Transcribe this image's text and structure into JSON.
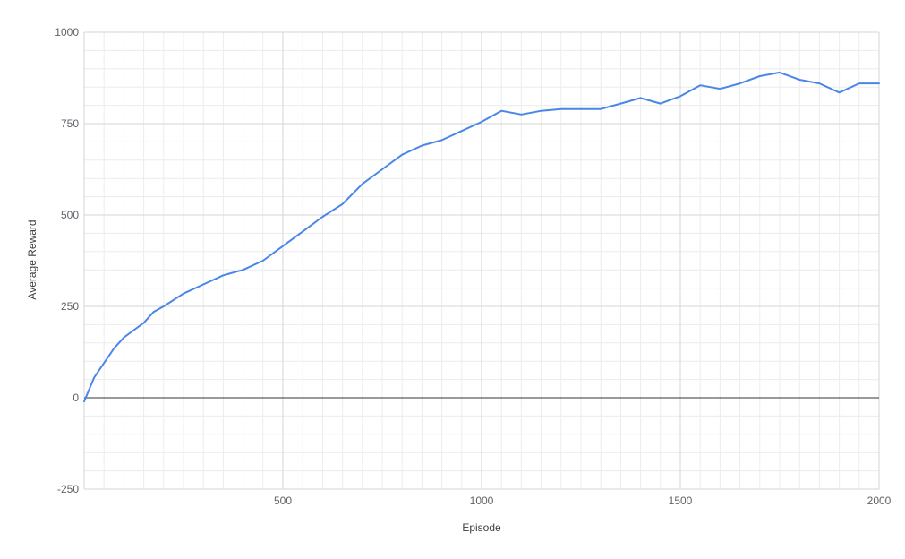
{
  "chart_data": {
    "type": "line",
    "title": "",
    "xlabel": "Episode",
    "ylabel": "Average Reward",
    "xlim": [
      0,
      2000
    ],
    "ylim": [
      -250,
      1000
    ],
    "x_ticks": [
      500,
      1000,
      1500,
      2000
    ],
    "y_ticks": [
      -250,
      0,
      250,
      500,
      750,
      1000
    ],
    "grid": true,
    "legend": "none",
    "series": [
      {
        "color": "#4a86e8",
        "x": [
          0,
          25,
          50,
          75,
          100,
          125,
          150,
          175,
          200,
          250,
          300,
          350,
          400,
          450,
          500,
          550,
          600,
          650,
          700,
          750,
          800,
          850,
          900,
          950,
          1000,
          1050,
          1100,
          1150,
          1200,
          1250,
          1300,
          1350,
          1400,
          1450,
          1500,
          1550,
          1600,
          1650,
          1700,
          1750,
          1800,
          1850,
          1900,
          1950,
          2000
        ],
        "values": [
          -10,
          55,
          95,
          135,
          165,
          185,
          205,
          235,
          250,
          285,
          310,
          335,
          350,
          375,
          415,
          455,
          495,
          530,
          585,
          625,
          665,
          690,
          705,
          730,
          755,
          785,
          775,
          785,
          790,
          790,
          790,
          805,
          820,
          805,
          825,
          855,
          845,
          860,
          880,
          890,
          870,
          860,
          835,
          860,
          860
        ]
      }
    ]
  }
}
